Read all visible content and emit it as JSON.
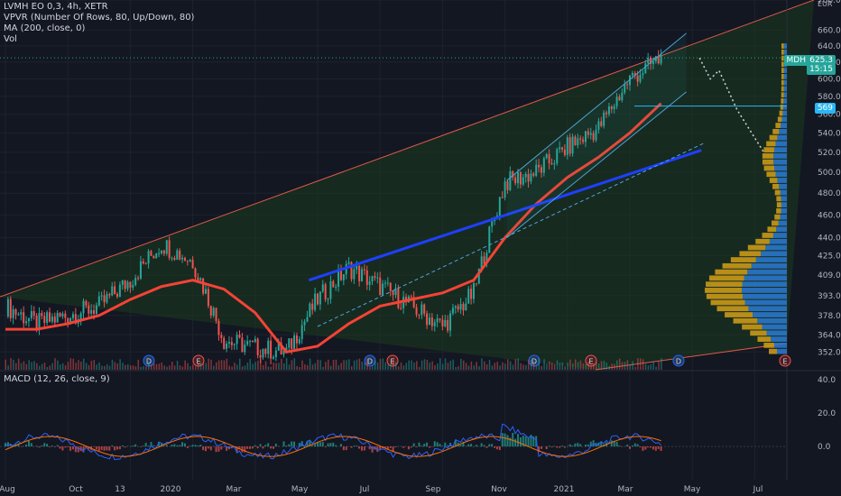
{
  "header": {
    "symbol": "LVMH EO 0,3, 4h, XETR",
    "vpvr": "VPVR (Number Of Rows, 80, Up/Down, 80)",
    "ma": "MA (200, close, 0)",
    "vol": "Vol",
    "macd": "MACD (12, 26, close, 9)"
  },
  "colors": {
    "bg": "#131722",
    "grid": "#1e222d",
    "up": "#26a69a",
    "down": "#ef5350",
    "ma": "#f44336",
    "trendline": "#1e40ff",
    "channel": "#4fa3d8",
    "wedge": "#e05a4a",
    "fill": "#1b3a1f",
    "vp_up": "#2a7bd5",
    "vp_down": "#d4a017",
    "macd": "#2962ff",
    "signal": "#ff6d00",
    "hline": "#29b6f6"
  },
  "chart_data": [
    {
      "type": "line",
      "title": "LVMH EO 0,3, 4h, XETR",
      "currency": "EUR",
      "x_ticks": [
        "Aug",
        "Oct",
        "13",
        "2020",
        "Mar",
        "May",
        "Jul",
        "Sep",
        "Nov",
        "2021",
        "Mar",
        "May",
        "Jul"
      ],
      "y_ticks": [
        352,
        364,
        378,
        393,
        409,
        425,
        440,
        460,
        480,
        500,
        520,
        540,
        560,
        580,
        600,
        620,
        640,
        660,
        700
      ],
      "y_scale": "log",
      "ylim": [
        340,
        700
      ],
      "series": [
        {
          "name": "LVMH",
          "x": [
            "Aug",
            "Sep",
            "Oct",
            "Nov",
            "Dec",
            "Jan",
            "Feb",
            "Mar",
            "Apr",
            "May",
            "Jun",
            "Jul",
            "Aug",
            "Sep",
            "Oct",
            "Nov",
            "Dec",
            "Jan",
            "Feb",
            "Mar",
            "Apr",
            "May"
          ],
          "values": [
            385,
            372,
            378,
            385,
            405,
            435,
            420,
            360,
            355,
            352,
            390,
            415,
            400,
            385,
            370,
            395,
            490,
            500,
            525,
            545,
            600,
            625
          ]
        },
        {
          "name": "MA (200, close, 0)",
          "x": [
            "Aug",
            "Sep",
            "Oct",
            "Nov",
            "Dec",
            "Jan",
            "Feb",
            "Mar",
            "Apr",
            "May",
            "Jun",
            "Jul",
            "Aug",
            "Sep",
            "Oct",
            "Nov",
            "Dec",
            "Jan",
            "Feb",
            "Mar",
            "Apr",
            "May"
          ],
          "values": [
            368,
            368,
            372,
            378,
            390,
            400,
            405,
            398,
            380,
            352,
            356,
            372,
            385,
            390,
            395,
            405,
            440,
            470,
            495,
            515,
            540,
            572
          ]
        }
      ],
      "levels": [
        {
          "label": "MDH",
          "value": 625.3,
          "time": "15:15"
        },
        {
          "label": "",
          "value": 569.0
        }
      ],
      "events": [
        "D",
        "E",
        "D",
        "E",
        "D",
        "E",
        "D",
        "E"
      ]
    },
    {
      "type": "line",
      "title": "MACD (12, 26, close, 9)",
      "y_ticks": [
        40.0,
        20.0,
        0.0
      ],
      "ylim": [
        -20,
        45
      ]
    }
  ]
}
